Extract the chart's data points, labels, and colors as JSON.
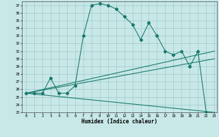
{
  "xlabel": "Humidex (Indice chaleur)",
  "bg_color": "#c8e8e8",
  "grid_color": "#a0c8c8",
  "line_color": "#1a7a6e",
  "ylim": [
    23,
    37.5
  ],
  "xlim": [
    -0.5,
    23.3
  ],
  "yticks": [
    23,
    24,
    25,
    26,
    27,
    28,
    29,
    30,
    31,
    32,
    33,
    34,
    35,
    36,
    37
  ],
  "xticks": [
    0,
    1,
    2,
    3,
    4,
    5,
    6,
    7,
    8,
    9,
    10,
    11,
    12,
    13,
    14,
    15,
    16,
    17,
    18,
    19,
    20,
    21,
    22,
    23
  ],
  "series": {
    "main": {
      "x": [
        0,
        1,
        2,
        3,
        4,
        5,
        6,
        7,
        8,
        9,
        10,
        11,
        12,
        13,
        14,
        15,
        16,
        17,
        18,
        19,
        20,
        21,
        22
      ],
      "y": [
        25.5,
        25.5,
        25.5,
        27.5,
        25.5,
        25.5,
        26.5,
        33.0,
        37.0,
        37.2,
        37.0,
        36.5,
        35.5,
        34.5,
        32.5,
        34.7,
        33.0,
        31.0,
        30.5,
        31.0,
        29.0,
        31.0,
        23.0
      ]
    },
    "line_up1": {
      "x": [
        0,
        23
      ],
      "y": [
        25.5,
        31.0
      ]
    },
    "line_up2": {
      "x": [
        0,
        23
      ],
      "y": [
        25.5,
        30.0
      ]
    },
    "line_down": {
      "x": [
        0,
        23
      ],
      "y": [
        25.5,
        23.0
      ]
    }
  }
}
